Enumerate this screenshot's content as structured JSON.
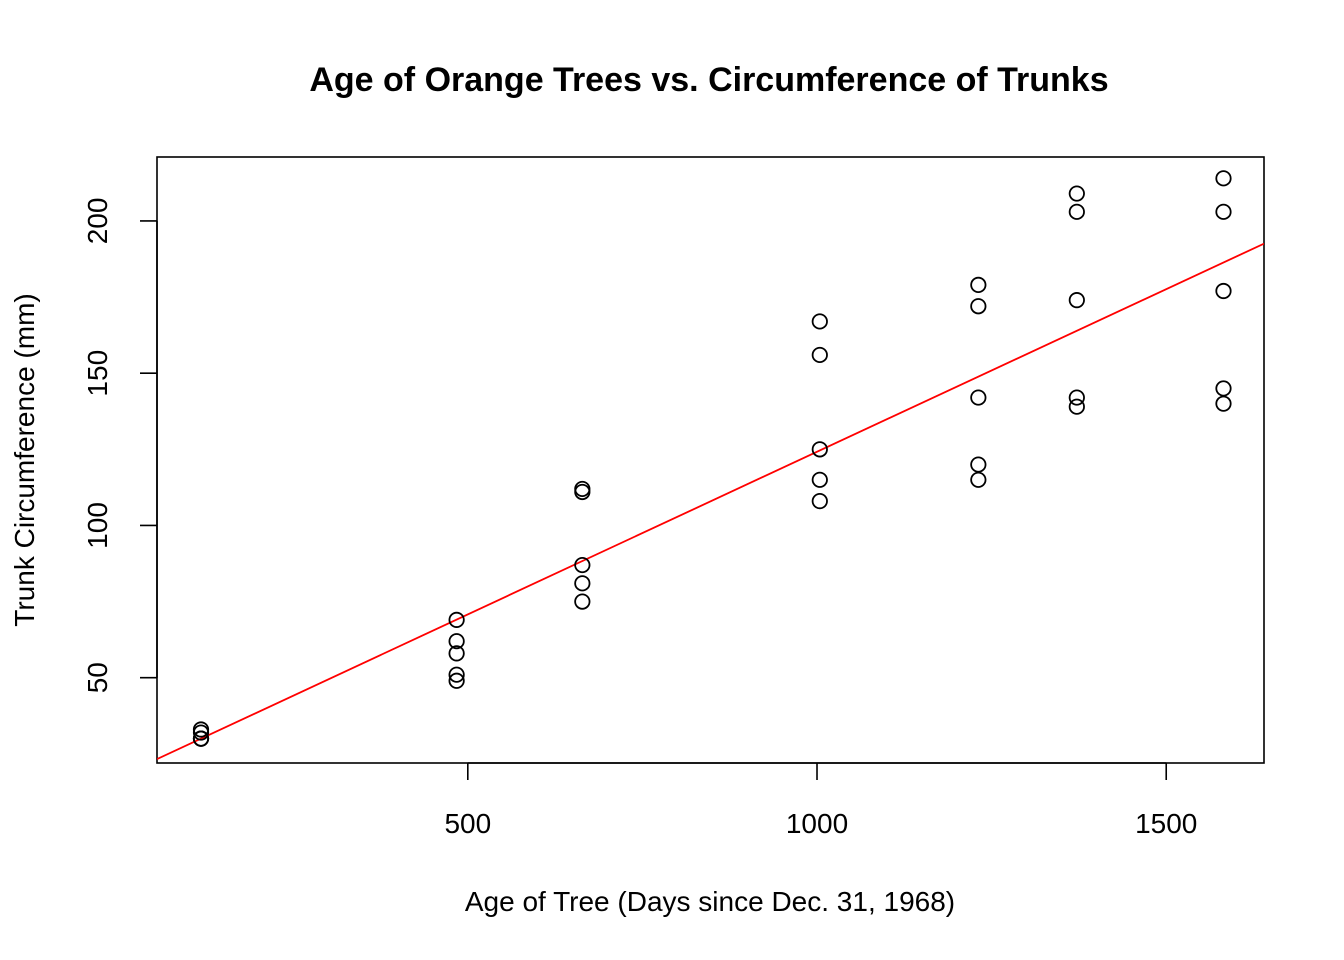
{
  "chart_data": {
    "type": "scatter",
    "title": "Age of Orange Trees vs. Circumference of Trunks",
    "xlabel": "Age of Tree (Days since Dec. 31, 1968)",
    "ylabel": "Trunk Circumference (mm)",
    "xlim": [
      55,
      1640
    ],
    "ylim": [
      22,
      221
    ],
    "x_ticks": [
      500,
      1000,
      1500
    ],
    "y_ticks": [
      50,
      100,
      150,
      200
    ],
    "grid": false,
    "legend": null,
    "series": [
      {
        "color": "#000000",
        "marker": "open-circle",
        "points": [
          [
            118,
            30
          ],
          [
            118,
            33
          ],
          [
            118,
            30
          ],
          [
            118,
            32
          ],
          [
            118,
            30
          ],
          [
            484,
            58
          ],
          [
            484,
            69
          ],
          [
            484,
            51
          ],
          [
            484,
            62
          ],
          [
            484,
            49
          ],
          [
            664,
            87
          ],
          [
            664,
            111
          ],
          [
            664,
            75
          ],
          [
            664,
            112
          ],
          [
            664,
            81
          ],
          [
            1004,
            115
          ],
          [
            1004,
            156
          ],
          [
            1004,
            108
          ],
          [
            1004,
            167
          ],
          [
            1004,
            125
          ],
          [
            1231,
            120
          ],
          [
            1231,
            172
          ],
          [
            1231,
            115
          ],
          [
            1231,
            179
          ],
          [
            1231,
            142
          ],
          [
            1372,
            142
          ],
          [
            1372,
            203
          ],
          [
            1372,
            139
          ],
          [
            1372,
            209
          ],
          [
            1372,
            174
          ],
          [
            1582,
            145
          ],
          [
            1582,
            203
          ],
          [
            1582,
            140
          ],
          [
            1582,
            214
          ],
          [
            1582,
            177
          ]
        ]
      }
    ],
    "fit_line": {
      "color": "#ff0000",
      "type": "linear",
      "intercept": 17.4,
      "slope": 0.1068
    }
  }
}
